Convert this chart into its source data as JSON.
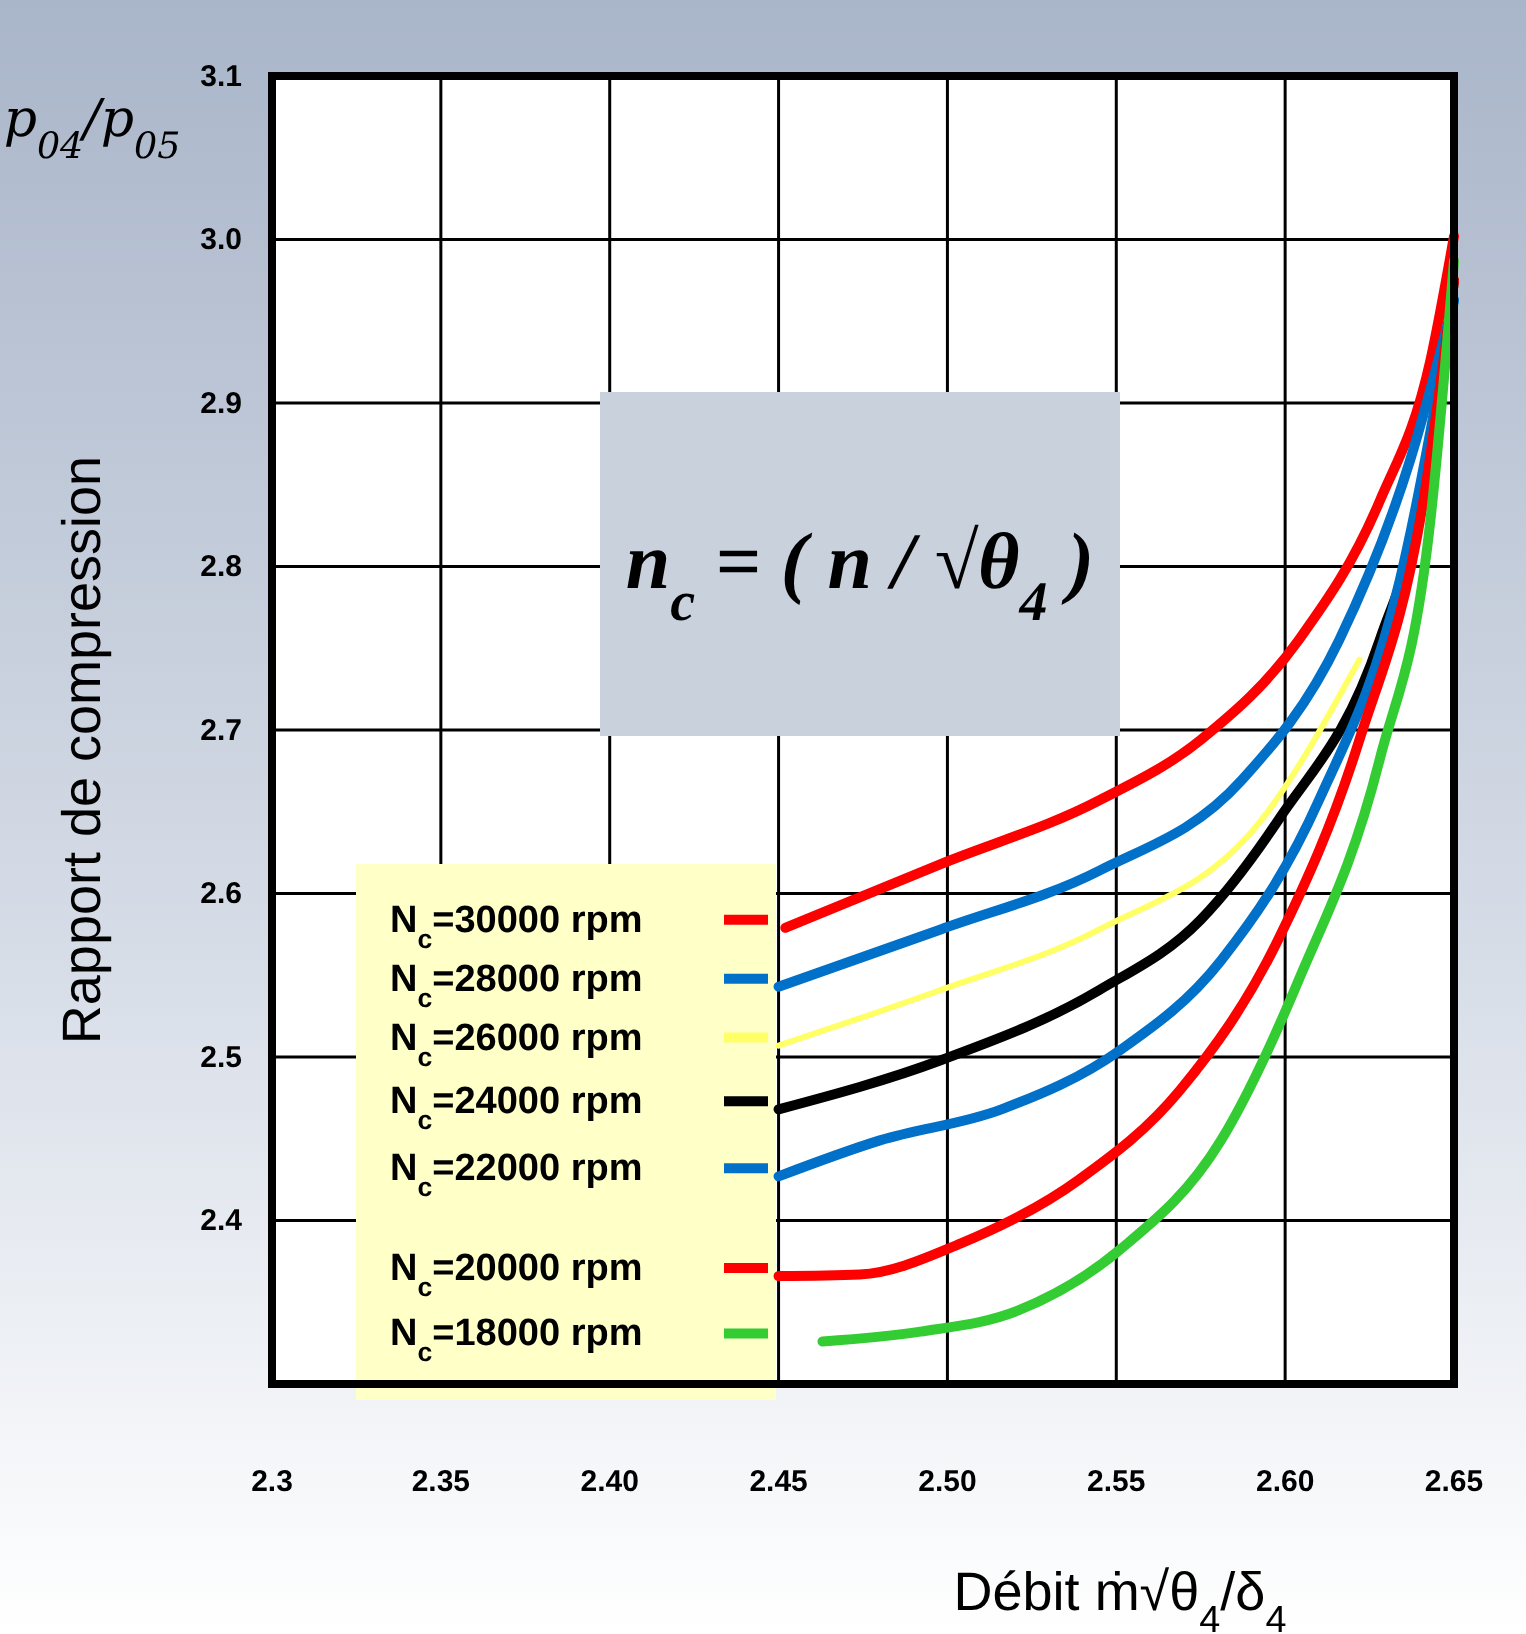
{
  "chart_data": {
    "type": "line",
    "xlabel": "Débit   ṁ√θ$_{4}$/δ$_{4}$",
    "ylabel": "Rapport de compression",
    "annotations": [
      "p$_{04}$/p$_{05}$",
      "n$_{c}$ = ( n / √θ$_{4}$ )"
    ],
    "xlim": [
      2.3,
      2.65
    ],
    "ylim": [
      2.3,
      3.1
    ],
    "xticks": [
      2.3,
      2.35,
      {
        "value": 2.4,
        "label": "2.40"
      },
      2.45,
      {
        "value": 2.5,
        "label": "2.50"
      },
      2.55,
      {
        "value": 2.6,
        "label": "2.60"
      },
      2.65
    ],
    "yticks": [
      2.4,
      2.5,
      2.6,
      2.7,
      2.8,
      2.9,
      {
        "value": 3.0,
        "label": "3.0"
      },
      3.1
    ],
    "grid": true,
    "legend": "bottom left",
    "marker": "none",
    "line_style": "solid",
    "series": [
      {
        "name": "N$_{c}$=30000 rpm",
        "color": "#ff0000",
        "x": [
          2.452,
          2.498,
          2.545,
          2.575,
          2.604,
          2.628,
          2.643,
          2.65
        ],
        "values": [
          2.579,
          2.618,
          2.657,
          2.694,
          2.755,
          2.84,
          2.926,
          3.002
        ]
      },
      {
        "name": "N$_{c}$=28000 rpm",
        "color": "#0070c8",
        "x": [
          2.45,
          2.498,
          2.545,
          2.587,
          2.616,
          2.637,
          2.65
        ],
        "values": [
          2.543,
          2.578,
          2.614,
          2.669,
          2.755,
          2.865,
          2.963
        ]
      },
      {
        "name": "N$_{c}$=26000 rpm",
        "color": "#ffff66",
        "x": [
          2.45,
          2.498,
          2.545,
          2.593,
          2.622
        ],
        "values": [
          2.507,
          2.541,
          2.578,
          2.645,
          2.743
        ]
      },
      {
        "name": "N$_{c}$=24000 rpm",
        "color": "#000000",
        "x": [
          2.45,
          2.498,
          2.545,
          2.575,
          2.598,
          2.628,
          2.643,
          2.65
        ],
        "values": [
          2.468,
          2.498,
          2.541,
          2.584,
          2.645,
          2.755,
          2.865,
          2.975
        ]
      },
      {
        "name": "N$_{c}$=22000 rpm",
        "color": "#0070c8",
        "x": [
          2.45,
          2.48,
          2.516,
          2.551,
          2.581,
          2.61,
          2.634,
          2.65
        ],
        "values": [
          2.427,
          2.449,
          2.468,
          2.504,
          2.559,
          2.657,
          2.792,
          2.963
        ]
      },
      {
        "name": "N$_{c}$=20000 rpm",
        "color": "#ff0000",
        "x": [
          2.45,
          2.474,
          2.504,
          2.539,
          2.569,
          2.598,
          2.622,
          2.641,
          2.65
        ],
        "values": [
          2.366,
          2.367,
          2.386,
          2.425,
          2.48,
          2.572,
          2.694,
          2.841,
          2.975
        ]
      },
      {
        "name": "N$_{c}$=18000 rpm",
        "color": "#33cc33",
        "x": [
          2.463,
          2.492,
          2.521,
          2.551,
          2.581,
          2.604,
          2.628,
          2.643,
          2.65
        ],
        "values": [
          2.326,
          2.332,
          2.345,
          2.382,
          2.449,
          2.547,
          2.682,
          2.828,
          2.987
        ]
      }
    ]
  }
}
